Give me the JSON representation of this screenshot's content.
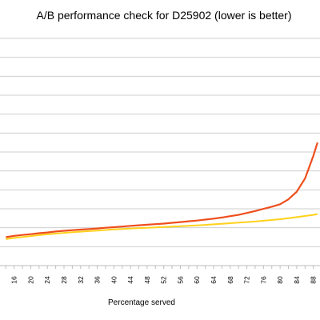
{
  "chart_data": {
    "type": "line",
    "title": "A/B performance check for D25902 (lower is better)",
    "xlabel": "Percentage served",
    "ylabel": "",
    "x_tick_labels": [
      "16",
      "20",
      "24",
      "28",
      "32",
      "36",
      "40",
      "44",
      "48",
      "52",
      "56",
      "60",
      "64",
      "68",
      "72",
      "76",
      "80",
      "84",
      "88"
    ],
    "grid": "horizontal",
    "series": [
      {
        "color": "#ee4e1d",
        "x": [
          14,
          16,
          18,
          20,
          22,
          24,
          26,
          28,
          30,
          32,
          34,
          36,
          38,
          40,
          42,
          44,
          46,
          48,
          50,
          52,
          54,
          56,
          58,
          60,
          62,
          64,
          66,
          68,
          70,
          72,
          74,
          76,
          78,
          80,
          82,
          84,
          86,
          88,
          89
        ],
        "y": [
          1.5,
          1.57,
          1.62,
          1.66,
          1.71,
          1.75,
          1.8,
          1.84,
          1.87,
          1.9,
          1.93,
          1.96,
          2.0,
          2.03,
          2.06,
          2.1,
          2.13,
          2.16,
          2.19,
          2.22,
          2.26,
          2.3,
          2.34,
          2.38,
          2.43,
          2.48,
          2.54,
          2.61,
          2.68,
          2.78,
          2.88,
          3.0,
          3.11,
          3.24,
          3.5,
          3.9,
          4.6,
          5.8,
          6.5
        ]
      },
      {
        "color": "#ffd11a",
        "x": [
          14,
          16,
          18,
          20,
          22,
          24,
          26,
          28,
          30,
          32,
          34,
          36,
          38,
          40,
          42,
          44,
          46,
          48,
          50,
          52,
          54,
          56,
          58,
          60,
          62,
          64,
          66,
          68,
          70,
          72,
          74,
          76,
          78,
          80,
          82,
          84,
          86,
          88,
          89
        ],
        "y": [
          1.4,
          1.46,
          1.51,
          1.56,
          1.61,
          1.65,
          1.69,
          1.73,
          1.76,
          1.79,
          1.82,
          1.85,
          1.88,
          1.91,
          1.93,
          1.96,
          1.98,
          2.0,
          2.02,
          2.04,
          2.06,
          2.08,
          2.1,
          2.12,
          2.15,
          2.18,
          2.21,
          2.24,
          2.27,
          2.3,
          2.33,
          2.37,
          2.41,
          2.45,
          2.5,
          2.56,
          2.62,
          2.68,
          2.72
        ]
      }
    ],
    "xlim": [
      12.6,
      89.6
    ],
    "ylim": [
      0,
      12
    ]
  }
}
